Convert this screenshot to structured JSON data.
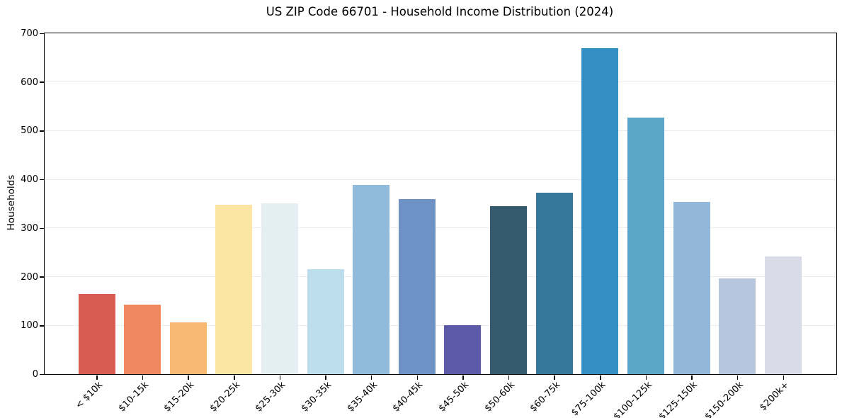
{
  "chart_data": {
    "type": "bar",
    "title": "US ZIP Code 66701 - Household Income Distribution (2024)",
    "xlabel": "",
    "ylabel": "Households",
    "ylim": [
      0,
      700
    ],
    "yticks": [
      0,
      100,
      200,
      300,
      400,
      500,
      600,
      700
    ],
    "grid": "horizontal-light",
    "legend": "none",
    "categories": [
      "< $10k",
      "$10-15k",
      "$15-20k",
      "$20-25k",
      "$25-30k",
      "$30-35k",
      "$35-40k",
      "$40-45k",
      "$45-50k",
      "$50-60k",
      "$60-75k",
      "$75-100k",
      "$100-125k",
      "$125-150k",
      "$150-200k",
      "$200k+"
    ],
    "values": [
      164,
      143,
      106,
      348,
      351,
      215,
      389,
      359,
      101,
      345,
      373,
      669,
      527,
      354,
      197,
      242
    ],
    "bar_colors": [
      "#d85c51",
      "#f0875f",
      "#f9b975",
      "#fce4a2",
      "#e4eff4",
      "#bcdeec",
      "#90bbdb",
      "#6e92c5",
      "#5c59a8",
      "#345a6e",
      "#36789d",
      "#358fc4",
      "#5ba5c9",
      "#92b7d9",
      "#b8c6dd",
      "#d8dae8"
    ]
  }
}
